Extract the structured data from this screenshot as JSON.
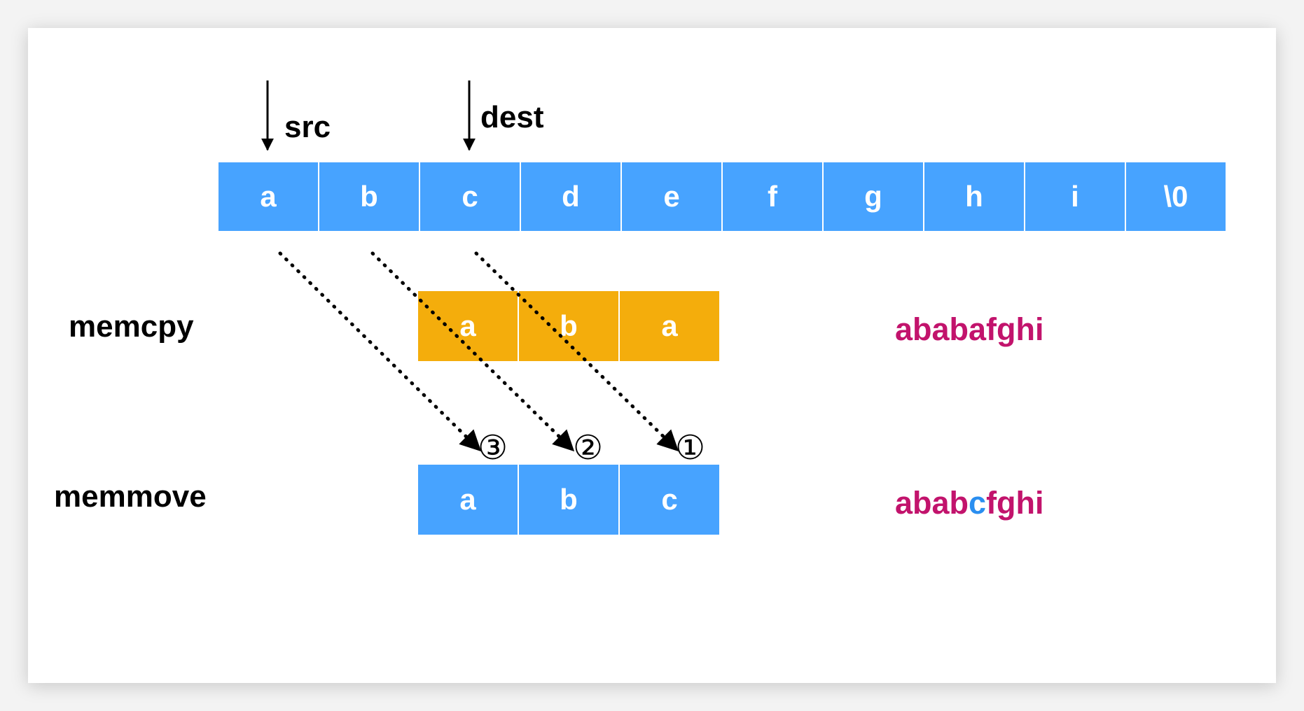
{
  "pointers": {
    "src": "src",
    "dest": "dest"
  },
  "top_array": [
    "a",
    "b",
    "c",
    "d",
    "e",
    "f",
    "g",
    "h",
    "i",
    "\\0"
  ],
  "memcpy": {
    "label": "memcpy",
    "cells": [
      "a",
      "b",
      "a"
    ],
    "result_prefix": "ababafghi"
  },
  "memmove": {
    "label": "memmove",
    "cells": [
      "a",
      "b",
      "c"
    ],
    "result_part1": "abab",
    "result_highlight": "c",
    "result_part2": "fghi"
  },
  "order_marks": [
    "③",
    "②",
    "①"
  ],
  "colors": {
    "blue": "#47a3ff",
    "orange": "#f4ad0c",
    "result_text": "#c2136c",
    "result_highlight": "#2a8ef0"
  }
}
